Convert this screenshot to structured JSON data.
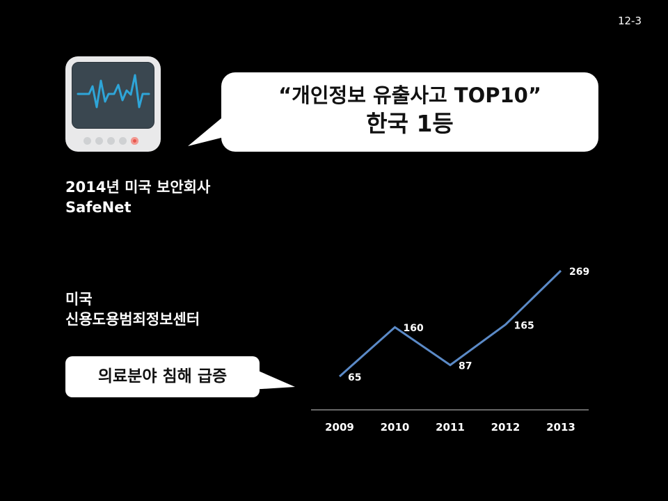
{
  "page_number": "12-3",
  "speech_bubble": {
    "line1": "“개인정보 유출사고 TOP10”",
    "line2": "한국 1등"
  },
  "source_caption": {
    "line1": "2014년 미국 보안회사",
    "line2": "SafeNet"
  },
  "agency_caption": {
    "line1": "미국",
    "line2": "신용도용범죄정보센터"
  },
  "callout": {
    "text": "의료분야 침해 급증"
  },
  "colors": {
    "background": "#000000",
    "line": "#5b8ac7",
    "text": "#ffffff"
  },
  "icons": {
    "monitor": "heart-rate-monitor-icon"
  },
  "chart_data": {
    "type": "line",
    "categories": [
      "2009",
      "2010",
      "2011",
      "2012",
      "2013"
    ],
    "values": [
      65,
      160,
      87,
      165,
      269
    ],
    "data_labels": [
      "65",
      "160",
      "87",
      "165",
      "269"
    ],
    "title": "",
    "xlabel": "",
    "ylabel": "",
    "grid": false,
    "legend": "none"
  }
}
